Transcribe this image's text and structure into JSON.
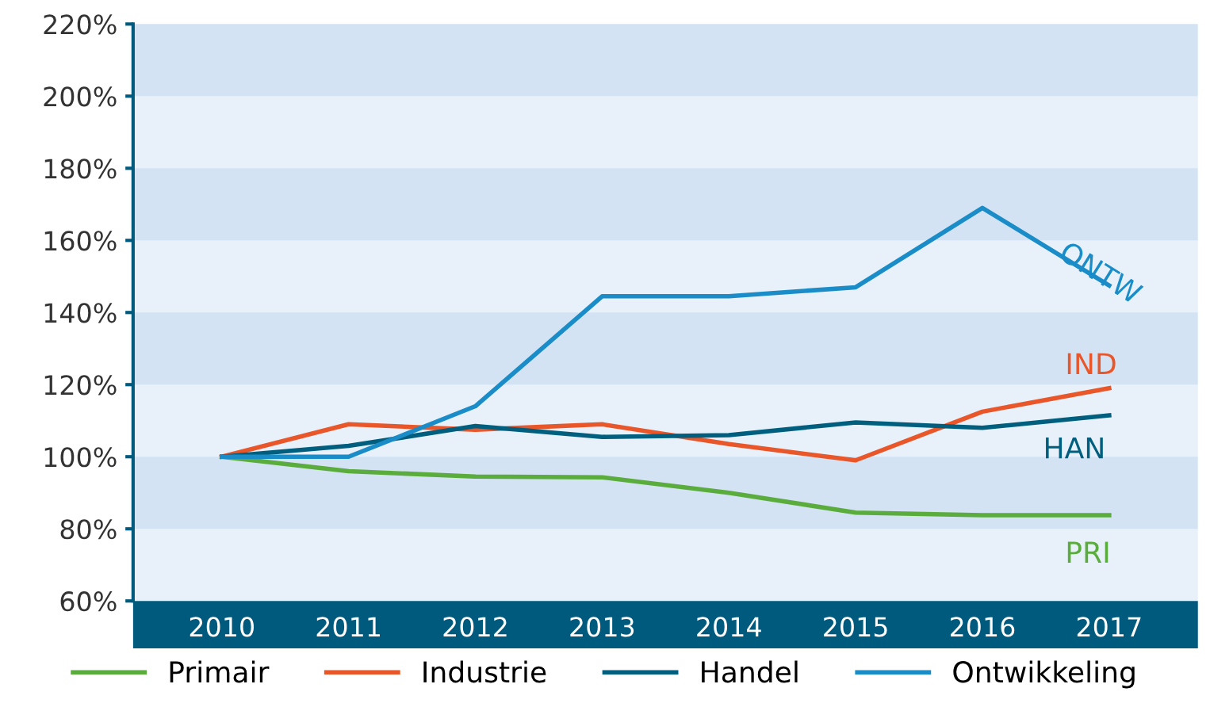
{
  "chart_data": {
    "type": "line",
    "categories": [
      "2010",
      "2011",
      "2012",
      "2013",
      "2014",
      "2015",
      "2016",
      "2017"
    ],
    "series": [
      {
        "name": "Primair",
        "color": "#5aac3c",
        "values": [
          100,
          96,
          94.5,
          94.3,
          90,
          84.5,
          83.8,
          83.8
        ]
      },
      {
        "name": "Industrie",
        "color": "#e8562a",
        "values": [
          100,
          109,
          107.5,
          109,
          103.5,
          99,
          112.5,
          119
        ]
      },
      {
        "name": "Handel",
        "color": "#005f7f",
        "values": [
          100,
          103,
          108.5,
          105.5,
          106,
          109.5,
          108,
          111.5
        ]
      },
      {
        "name": "Ontwikkeling",
        "color": "#1a8cc8",
        "values": [
          100,
          100,
          114,
          144.5,
          144.5,
          147,
          169,
          147.5
        ]
      }
    ],
    "ylim": [
      60,
      220
    ],
    "yticks": [
      {
        "value": 60,
        "label": "60%"
      },
      {
        "value": 80,
        "label": "80%"
      },
      {
        "value": 100,
        "label": "100%"
      },
      {
        "value": 120,
        "label": "120%"
      },
      {
        "value": 140,
        "label": "140%"
      },
      {
        "value": 160,
        "label": "160%"
      },
      {
        "value": 180,
        "label": "180%"
      },
      {
        "value": 200,
        "label": "200%"
      },
      {
        "value": 220,
        "label": "220%"
      }
    ],
    "bands": [
      {
        "axis": "y",
        "from": 80,
        "to": 100,
        "color": "#d3e3f3"
      },
      {
        "axis": "y",
        "from": 120,
        "to": 140,
        "color": "#d3e3f3"
      },
      {
        "axis": "y",
        "from": 160,
        "to": 180,
        "color": "#d3e3f3"
      },
      {
        "axis": "y",
        "from": 200,
        "to": 220,
        "color": "#d3e3f3"
      }
    ],
    "annotations": [
      {
        "text": "PRI",
        "x": "2017",
        "y": 83.8
      },
      {
        "text": "IND",
        "x": "2017",
        "y": 119
      },
      {
        "text": "HAN",
        "x": "2017",
        "y": 111.5
      },
      {
        "text": "ONTW",
        "x": "2017",
        "y": 147.5
      }
    ],
    "grid": false,
    "legend": "bottom",
    "marker": "none",
    "line_style": "solid"
  }
}
